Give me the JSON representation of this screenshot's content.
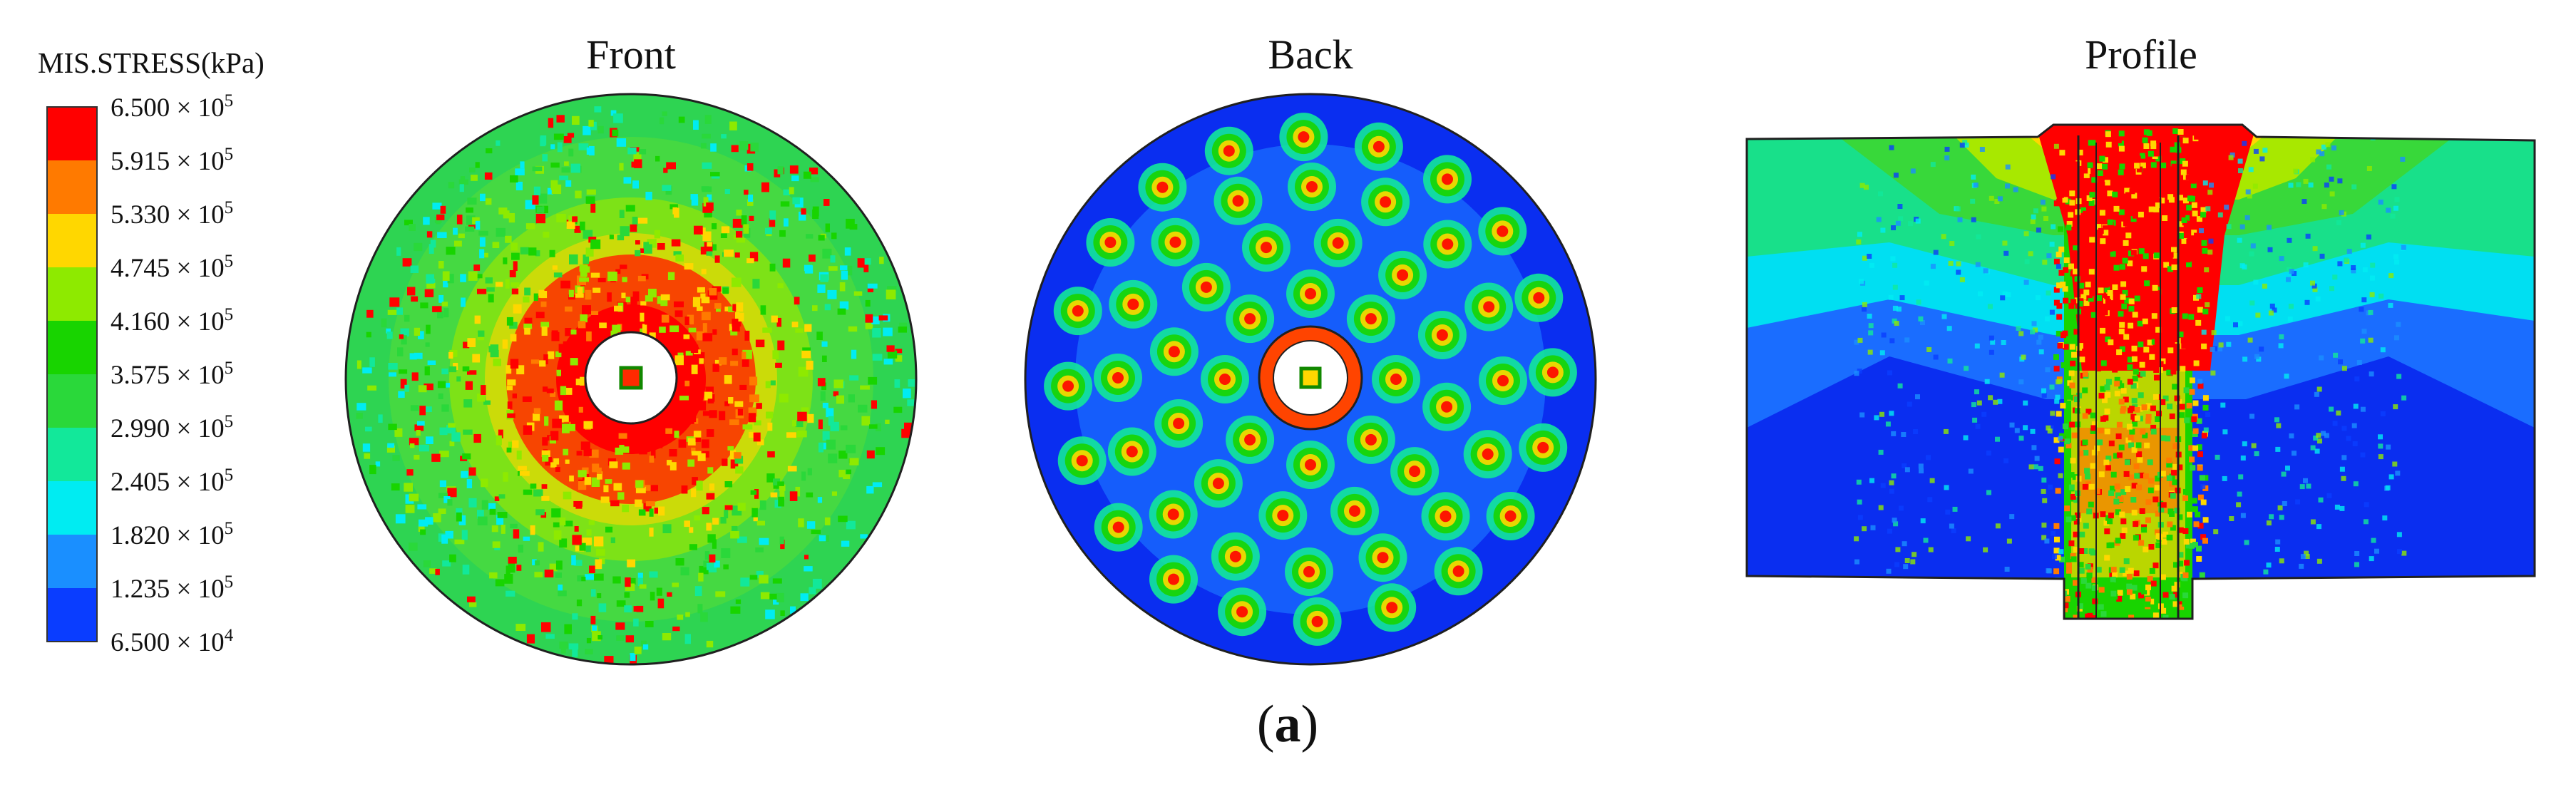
{
  "legend": {
    "title": "MIS.STRESS(kPa)",
    "levels": [
      {
        "mantissa": "6.500",
        "exponent": "5",
        "color": "#ff0000"
      },
      {
        "mantissa": "5.915",
        "exponent": "5",
        "color": "#ff7a00"
      },
      {
        "mantissa": "5.330",
        "exponent": "5",
        "color": "#ffd700"
      },
      {
        "mantissa": "4.745",
        "exponent": "5",
        "color": "#8eea00"
      },
      {
        "mantissa": "4.160",
        "exponent": "5",
        "color": "#18d400"
      },
      {
        "mantissa": "3.575",
        "exponent": "5",
        "color": "#2ad83a"
      },
      {
        "mantissa": "2.990",
        "exponent": "5",
        "color": "#12e89a"
      },
      {
        "mantissa": "2.405",
        "exponent": "5",
        "color": "#00ecf2"
      },
      {
        "mantissa": "1.820",
        "exponent": "5",
        "color": "#1a8fff"
      },
      {
        "mantissa": "1.235",
        "exponent": "5",
        "color": "#0a3dff"
      },
      {
        "mantissa": "6.500",
        "exponent": "4",
        "color": "#0a1ef0"
      }
    ]
  },
  "panels": {
    "front": {
      "title": "Front"
    },
    "back": {
      "title": "Back"
    },
    "profile": {
      "title": "Profile"
    }
  },
  "caption": {
    "open": "(",
    "letter": "a",
    "close": ")"
  }
}
